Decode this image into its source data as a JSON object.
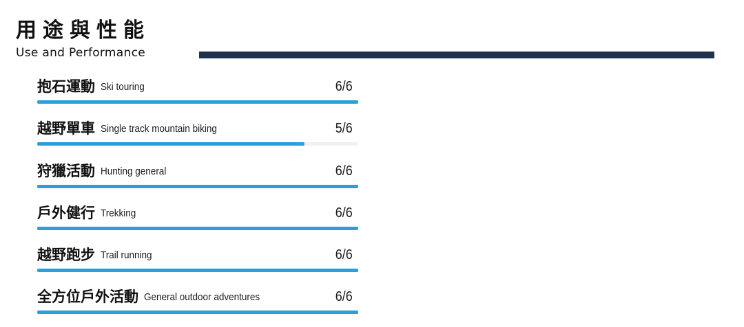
{
  "header": {
    "title_zh": "用途與性能",
    "title_en": "Use and Performance"
  },
  "colors": {
    "accent": "#2b9fd8",
    "rule": "#1f3350",
    "track": "#f1f1f1"
  },
  "rows": [
    {
      "label_zh": "抱石運動",
      "label_en": "Ski touring",
      "score_text": "6/6",
      "value": 6,
      "max": 6
    },
    {
      "label_zh": "越野單車",
      "label_en": "Single track mountain biking",
      "score_text": "5/6",
      "value": 5,
      "max": 6
    },
    {
      "label_zh": "狩獵活動",
      "label_en": "Hunting general",
      "score_text": "6/6",
      "value": 6,
      "max": 6
    },
    {
      "label_zh": "戶外健行",
      "label_en": "Trekking",
      "score_text": "6/6",
      "value": 6,
      "max": 6
    },
    {
      "label_zh": "越野跑步",
      "label_en": "Trail running",
      "score_text": "6/6",
      "value": 6,
      "max": 6
    },
    {
      "label_zh": "全方位戶外活動",
      "label_en": "General outdoor adventures",
      "score_text": "6/6",
      "value": 6,
      "max": 6
    }
  ]
}
